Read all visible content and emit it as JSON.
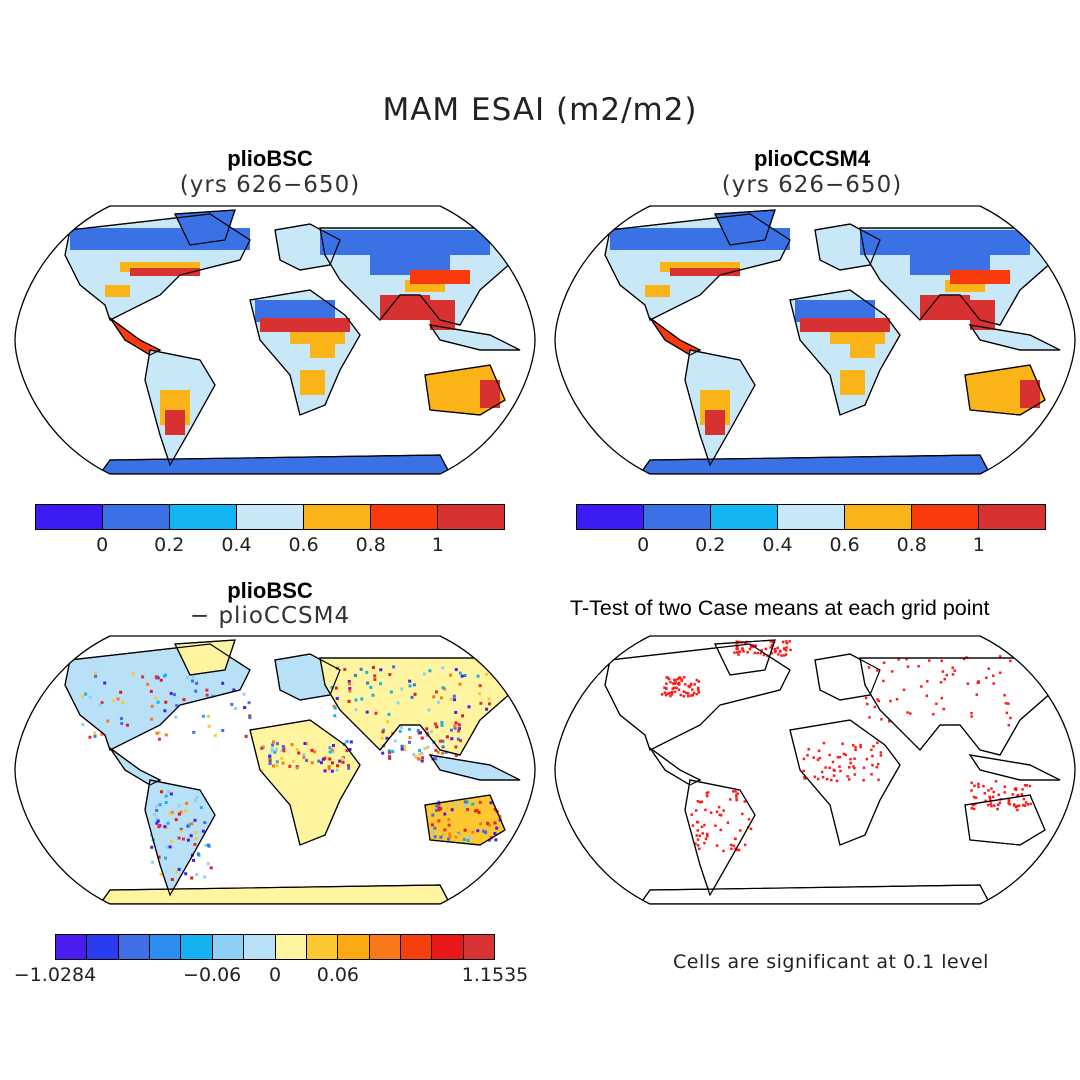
{
  "title": "MAM ESAI (m2/m2)",
  "panels": {
    "top_left": {
      "title": "plioBSC",
      "subtitle": "(yrs 626−650)"
    },
    "top_right": {
      "title": "plioCCSM4",
      "subtitle": "(yrs 626−650)"
    },
    "bottom_left": {
      "title": "plioBSC",
      "subtitle": "− plioCCSM4"
    },
    "bottom_right": {
      "title": "T-Test of two Case means at each grid point",
      "note": "Cells are significant at 0.1 level"
    }
  },
  "colorbar_main": {
    "colors": [
      "#3b1cf2",
      "#3a71e4",
      "#12b4f1",
      "#c8e8f8",
      "#fbb418",
      "#f83a0c",
      "#d83131"
    ],
    "ticks": [
      "0",
      "0.2",
      "0.4",
      "0.6",
      "0.8",
      "1"
    ]
  },
  "colorbar_diff": {
    "colors": [
      "#4b1cf0",
      "#2a3cf0",
      "#3f6ee6",
      "#2e8ef0",
      "#14b2f0",
      "#8ed0f4",
      "#b8e0f6",
      "#fff4a0",
      "#fcc832",
      "#fbaa12",
      "#f8781a",
      "#f8400e",
      "#e81818",
      "#d83434"
    ],
    "ticks": [
      "−1.0284",
      "−0.06",
      "0",
      "0.06",
      "1.1535"
    ]
  }
}
